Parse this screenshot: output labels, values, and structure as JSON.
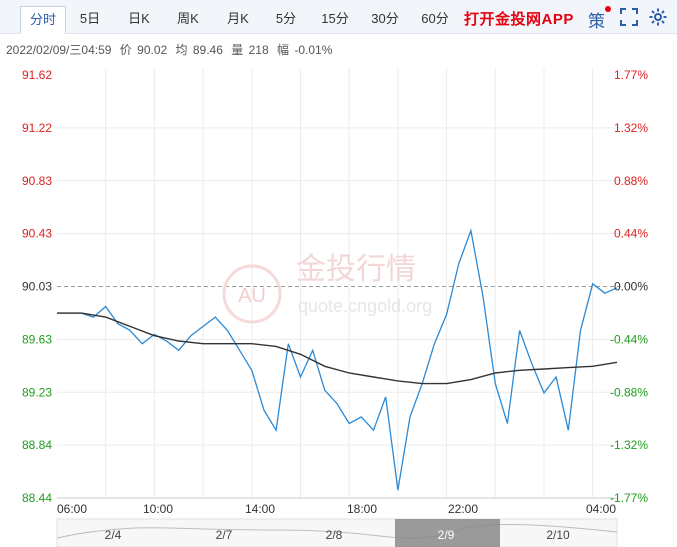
{
  "tabs": [
    {
      "label": "分时",
      "active": true
    },
    {
      "label": "5日"
    },
    {
      "label": "日K"
    },
    {
      "label": "周K"
    },
    {
      "label": "月K"
    },
    {
      "label": "5分"
    },
    {
      "label": "15分"
    },
    {
      "label": "30分"
    },
    {
      "label": "60分"
    }
  ],
  "app_link": "打开金投网APP",
  "icons": {
    "strategy": "策",
    "fullscreen": "fullscreen-icon",
    "settings": "gear-icon"
  },
  "colors": {
    "price_line": "#2b8ad6",
    "avg_line": "#333333",
    "up": "#e02020",
    "down": "#1e9e1e",
    "tab_accent": "#2a5ea8"
  },
  "info": {
    "datetime": "2022/02/09/三04:59",
    "price_label": "价",
    "price": "90.02",
    "avg_label": "均",
    "avg": "89.46",
    "vol_label": "量",
    "vol": "218",
    "chg_label": "幅",
    "chg": "-0.01%"
  },
  "watermark": {
    "brand": "金投行情",
    "url": "quote.cngold.org",
    "logo_text": "AU"
  },
  "chart_data": {
    "type": "line",
    "reference_price": 90.03,
    "ylim": [
      88.44,
      91.62
    ],
    "y_ticks_left": [
      "91.62",
      "91.22",
      "90.83",
      "90.43",
      "90.03",
      "89.63",
      "89.23",
      "88.84",
      "88.44"
    ],
    "y_ticks_right": [
      "1.77%",
      "1.32%",
      "0.88%",
      "0.44%",
      "0.00%",
      "-0.44%",
      "-0.88%",
      "-1.32%",
      "-1.77%"
    ],
    "x_ticks": [
      "06:00",
      "10:00",
      "14:00",
      "18:00",
      "22:00",
      "04:00"
    ],
    "navigator_labels": [
      "2/4",
      "2/7",
      "2/8",
      "2/9",
      "2/10"
    ],
    "series": [
      {
        "x": [
          0,
          0.5,
          1,
          1.5,
          2,
          2.5,
          3,
          3.5,
          4,
          4.5,
          5,
          5.5,
          6,
          6.5,
          7,
          7.5,
          8,
          8.5,
          9,
          9.5,
          10,
          10.5,
          11,
          11.5,
          12,
          12.5,
          13,
          13.5,
          14,
          14.5,
          15,
          15.5,
          16,
          16.5,
          17,
          17.5,
          18,
          18.5,
          19,
          19.5,
          20,
          20.5,
          21,
          21.5,
          22,
          22.5,
          23
        ],
        "values": [
          89.83,
          89.83,
          89.83,
          89.8,
          89.88,
          89.75,
          89.7,
          89.6,
          89.67,
          89.62,
          89.55,
          89.66,
          89.73,
          89.8,
          89.7,
          89.55,
          89.4,
          89.1,
          88.95,
          89.6,
          89.35,
          89.55,
          89.25,
          89.15,
          89.0,
          89.05,
          88.95,
          89.2,
          88.5,
          89.05,
          89.3,
          89.6,
          89.82,
          90.2,
          90.45,
          89.95,
          89.3,
          89.0,
          89.7,
          89.45,
          89.23,
          89.35,
          88.95,
          89.7,
          90.05,
          89.98,
          90.02
        ]
      },
      {
        "x": [
          0,
          1,
          2,
          3,
          4,
          5,
          6,
          7,
          8,
          9,
          10,
          11,
          12,
          13,
          14,
          15,
          16,
          17,
          18,
          19,
          20,
          21,
          22,
          23
        ],
        "values": [
          89.83,
          89.83,
          89.8,
          89.73,
          89.66,
          89.62,
          89.6,
          89.6,
          89.6,
          89.58,
          89.52,
          89.43,
          89.38,
          89.35,
          89.32,
          89.3,
          89.3,
          89.33,
          89.38,
          89.4,
          89.41,
          89.42,
          89.43,
          89.46
        ]
      }
    ]
  }
}
